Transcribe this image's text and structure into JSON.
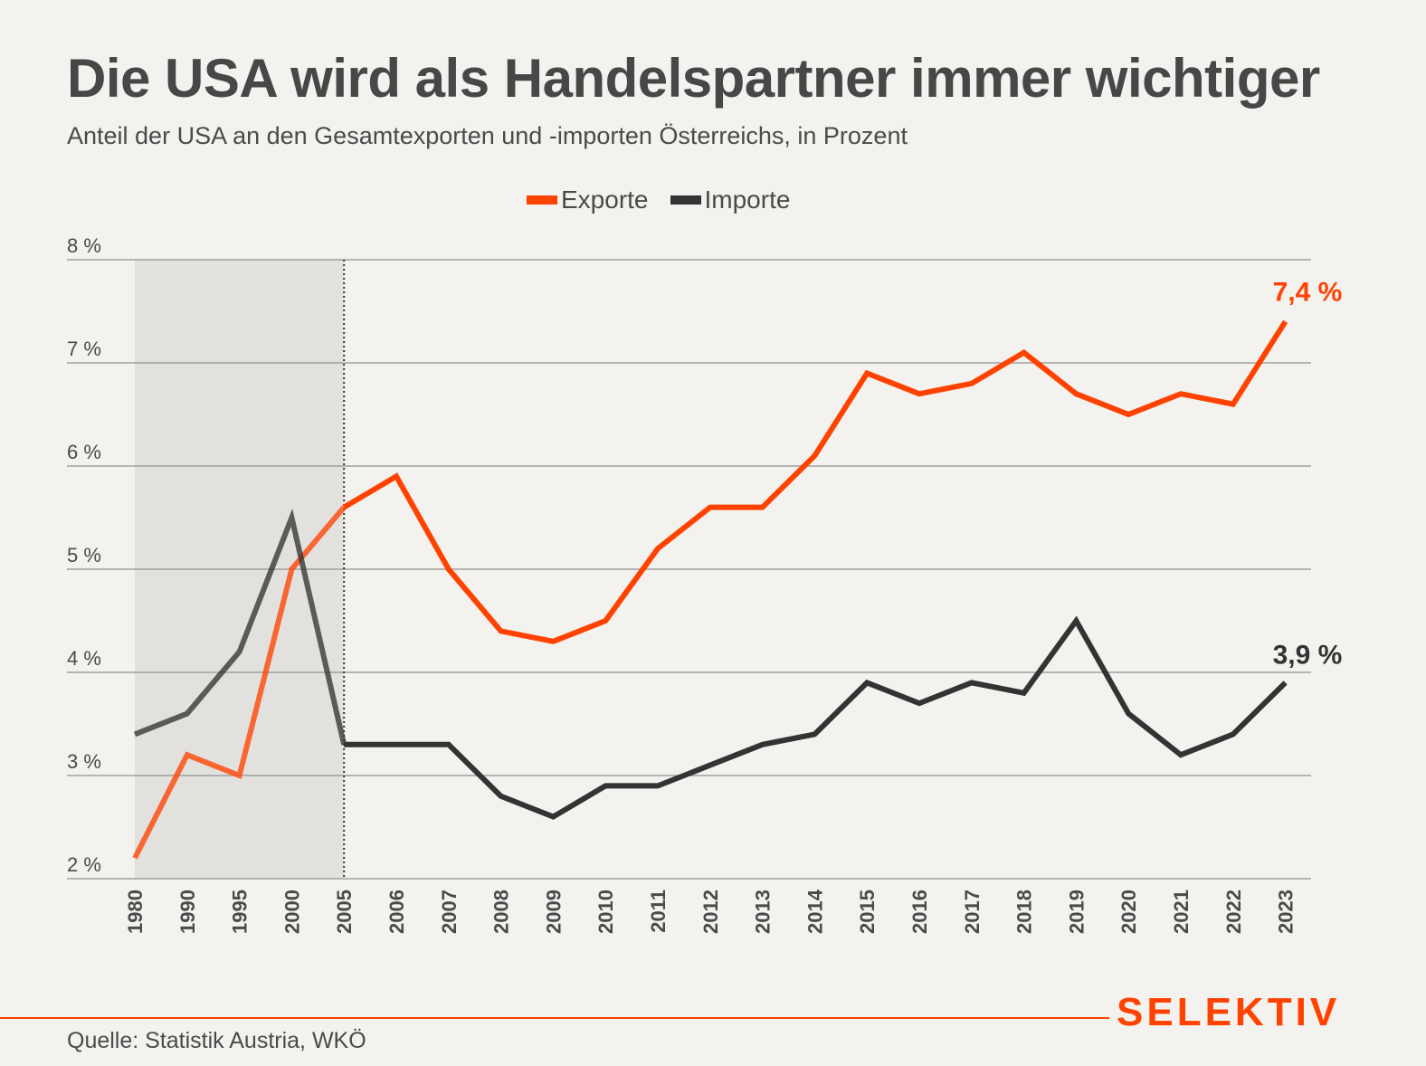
{
  "header": {
    "title": "Die USA wird als Handelspartner immer wichtiger",
    "subtitle": "Anteil der USA an den Gesamtexporten und -importen Österreichs, in Prozent"
  },
  "footer": {
    "source": "Quelle: Statistik Austria, WKÖ",
    "brand": "SELEKTIV"
  },
  "colors": {
    "exports": "#ff4200",
    "imports": "#333333",
    "background": "#f3f2ef",
    "shaded_region": "#e2e1de",
    "grid": "#a0a0a0",
    "text": "#474747"
  },
  "chart_data": {
    "type": "line",
    "title": "Die USA wird als Handelspartner immer wichtiger",
    "subtitle": "Anteil der USA an den Gesamtexporten und -importen Österreichs, in Prozent",
    "xlabel": "",
    "ylabel": "",
    "x": [
      "1980",
      "1990",
      "1995",
      "2000",
      "2005",
      "2006",
      "2007",
      "2008",
      "2009",
      "2010",
      "2011",
      "2012",
      "2013",
      "2014",
      "2015",
      "2016",
      "2017",
      "2018",
      "2019",
      "2020",
      "2021",
      "2022",
      "2023"
    ],
    "ylim": [
      2,
      8
    ],
    "yticks": [
      2,
      3,
      4,
      5,
      6,
      7,
      8
    ],
    "ytick_labels": [
      "2 %",
      "3 %",
      "4 %",
      "5 %",
      "6 %",
      "7 %",
      "8 %"
    ],
    "grid": true,
    "legend_position": "top-center",
    "shaded_range": [
      "1980",
      "2005"
    ],
    "series": [
      {
        "name": "Exporte",
        "color": "#ff4200",
        "values": [
          2.2,
          3.2,
          3.0,
          5.0,
          5.6,
          5.9,
          5.0,
          4.4,
          4.3,
          4.5,
          5.2,
          5.6,
          5.6,
          6.1,
          6.9,
          6.7,
          6.8,
          7.1,
          6.7,
          6.5,
          6.7,
          6.6,
          7.4
        ],
        "end_label": "7,4 %"
      },
      {
        "name": "Importe",
        "color": "#333333",
        "values": [
          3.4,
          3.6,
          4.2,
          5.5,
          3.3,
          3.3,
          3.3,
          2.8,
          2.6,
          2.9,
          2.9,
          3.1,
          3.3,
          3.4,
          3.9,
          3.7,
          3.9,
          3.8,
          4.5,
          3.6,
          3.2,
          3.4,
          3.9
        ],
        "end_label": "3,9 %"
      }
    ]
  }
}
